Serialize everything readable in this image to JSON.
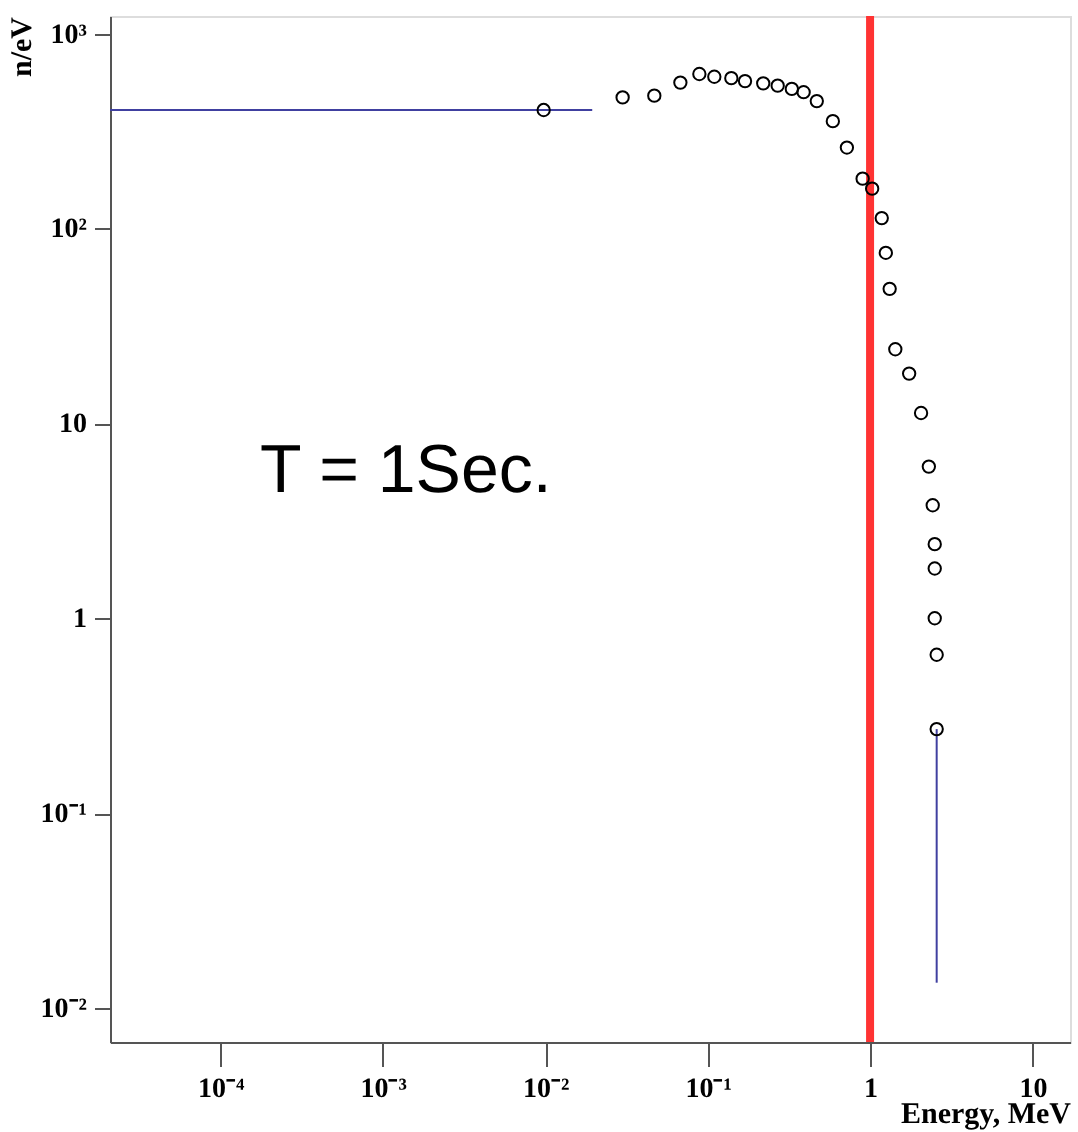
{
  "chart_data": {
    "type": "scatter",
    "xlabel": "Energy, MeV",
    "ylabel": "n/eV",
    "log": "xy",
    "marker": "circle",
    "xlim": [
      2.1e-05,
      17
    ],
    "ylim": [
      0.0067,
      1230
    ],
    "xticks": [
      {
        "value": 0.0001,
        "label": "10⁻⁴"
      },
      {
        "value": 0.001,
        "label": "10⁻³"
      },
      {
        "value": 0.01,
        "label": "10⁻²"
      },
      {
        "value": 0.1,
        "label": "10⁻¹"
      },
      1,
      10
    ],
    "yticks": [
      {
        "value": 0.01,
        "label": "10⁻²"
      },
      {
        "value": 0.1,
        "label": "10⁻¹"
      },
      1,
      10,
      {
        "value": 100,
        "label": "10²"
      },
      {
        "value": 1000,
        "label": "10³"
      }
    ],
    "annotations": [
      "T = 1Sec."
    ],
    "ref_lines": [
      {
        "axis": "x",
        "value": 1,
        "color": "#ff3333"
      }
    ],
    "series": [
      {
        "color": "#000000",
        "x": [
          0.0098,
          0.03,
          0.047,
          0.068,
          0.089,
          0.11,
          0.14,
          0.17,
          0.22,
          0.27,
          0.33,
          0.39,
          0.47,
          0.59,
          0.72,
          0.9,
          1.03,
          1.18,
          1.25,
          1.32,
          1.43,
          1.74,
          2.06,
          2.3,
          2.43,
          2.5,
          2.5,
          2.5,
          2.57,
          2.57
        ],
        "values": [
          405,
          470,
          480,
          560,
          620,
          600,
          590,
          570,
          555,
          540,
          520,
          500,
          450,
          355,
          260,
          180,
          160,
          113,
          75,
          49,
          24,
          18,
          11.3,
          6.0,
          3.8,
          2.4,
          1.8,
          1.0,
          0.65,
          0.27
        ],
        "xerrors": [
          [
            2.1e-05,
            0.0195
          ],
          null,
          null,
          null,
          null,
          null,
          null,
          null,
          null,
          null,
          null,
          null,
          null,
          null,
          null,
          null,
          null,
          null,
          null,
          null,
          null,
          null,
          null,
          null,
          null,
          null,
          null,
          null,
          null,
          null
        ],
        "errors": [
          null,
          null,
          null,
          null,
          null,
          null,
          null,
          null,
          null,
          null,
          null,
          null,
          null,
          null,
          null,
          null,
          null,
          null,
          null,
          null,
          null,
          null,
          null,
          null,
          null,
          null,
          null,
          null,
          null,
          [
            0.0135,
            0.27
          ]
        ]
      }
    ]
  }
}
